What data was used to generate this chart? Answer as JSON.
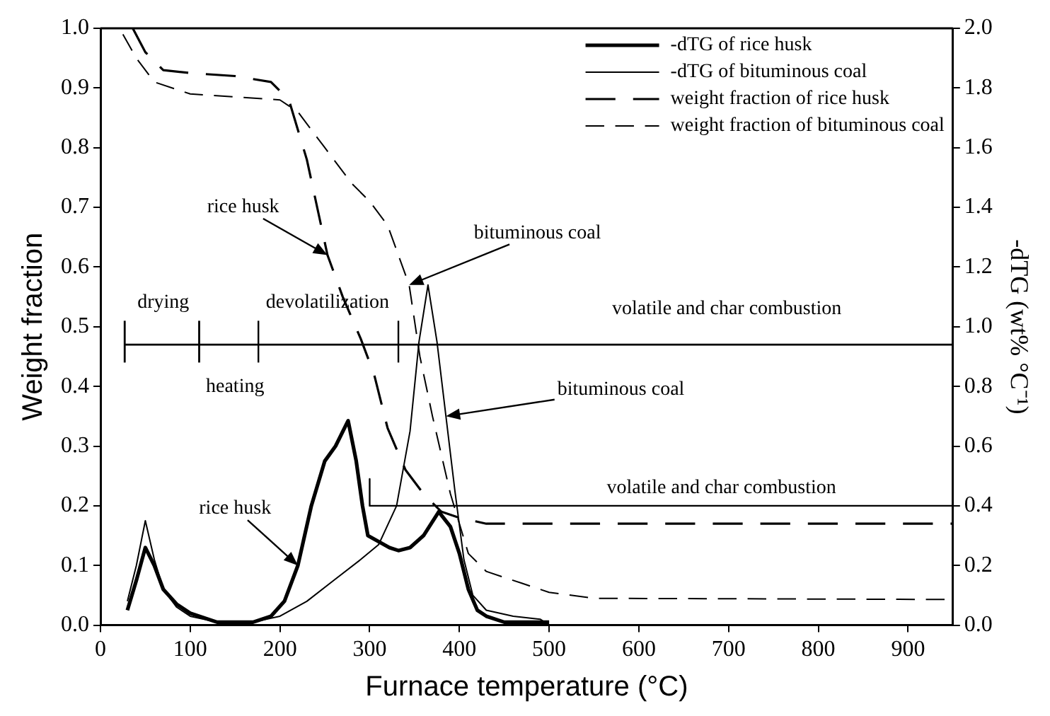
{
  "chart_data": {
    "type": "line",
    "xlabel": "Furnace temperature (°C)",
    "ylabel": "Weight fraction",
    "y2label": "-dTG (wt% °C⁻¹)",
    "xlim": [
      0,
      950
    ],
    "xticks": [
      0,
      100,
      200,
      300,
      400,
      500,
      600,
      700,
      800,
      900
    ],
    "ylim": [
      0,
      1
    ],
    "yticks": [
      {
        "value": 0,
        "label": "0.0"
      },
      {
        "value": 0.1,
        "label": "0.1"
      },
      {
        "value": 0.2,
        "label": "0.2"
      },
      {
        "value": 0.3,
        "label": "0.3"
      },
      {
        "value": 0.4,
        "label": "0.4"
      },
      {
        "value": 0.5,
        "label": "0.5"
      },
      {
        "value": 0.6,
        "label": "0.6"
      },
      {
        "value": 0.7,
        "label": "0.7"
      },
      {
        "value": 0.8,
        "label": "0.8"
      },
      {
        "value": 0.9,
        "label": "0.9"
      },
      {
        "value": 1,
        "label": "1.0"
      }
    ],
    "y2lim": [
      0,
      2
    ],
    "y2ticks": [
      {
        "value": 0,
        "label": "0.0"
      },
      {
        "value": 0.2,
        "label": "0.2"
      },
      {
        "value": 0.4,
        "label": "0.4"
      },
      {
        "value": 0.6,
        "label": "0.6"
      },
      {
        "value": 0.8,
        "label": "0.8"
      },
      {
        "value": 1,
        "label": "1.0"
      },
      {
        "value": 1.2,
        "label": "1.2"
      },
      {
        "value": 1.4,
        "label": "1.4"
      },
      {
        "value": 1.6,
        "label": "1.6"
      },
      {
        "value": 1.8,
        "label": "1.8"
      },
      {
        "value": 2,
        "label": "2.0"
      }
    ],
    "grid": false,
    "legend": "top right",
    "marker": "none",
    "series": [
      {
        "name": "-dTG of rice husk",
        "color": "#000000",
        "axis": "y2",
        "line_style": "solid",
        "x": [
          30,
          40,
          50,
          60,
          70,
          85,
          100,
          130,
          170,
          190,
          205,
          220,
          235,
          250,
          262,
          276,
          285,
          292,
          298,
          310,
          322,
          332,
          345,
          360,
          377,
          390,
          400,
          410,
          420,
          430,
          450,
          480,
          500
        ],
        "values": [
          0.05,
          0.15,
          0.26,
          0.2,
          0.12,
          0.07,
          0.04,
          0.01,
          0.01,
          0.03,
          0.08,
          0.2,
          0.4,
          0.55,
          0.6,
          0.685,
          0.55,
          0.4,
          0.3,
          0.28,
          0.26,
          0.25,
          0.26,
          0.3,
          0.38,
          0.33,
          0.24,
          0.12,
          0.05,
          0.03,
          0.01,
          0.01,
          0.01
        ]
      },
      {
        "name": "-dTG of bituminous coal",
        "color": "#000000",
        "axis": "y2",
        "line_style": "solid",
        "x": [
          30,
          40,
          50,
          60,
          70,
          85,
          100,
          130,
          170,
          200,
          230,
          260,
          290,
          310,
          330,
          345,
          355,
          365,
          375,
          385,
          395,
          405,
          415,
          430,
          460,
          490,
          500
        ],
        "values": [
          0.08,
          0.2,
          0.35,
          0.22,
          0.12,
          0.06,
          0.03,
          0.01,
          0.01,
          0.03,
          0.08,
          0.15,
          0.22,
          0.27,
          0.4,
          0.65,
          0.95,
          1.14,
          0.95,
          0.7,
          0.45,
          0.22,
          0.1,
          0.05,
          0.03,
          0.02,
          0
        ]
      },
      {
        "name": "weight fraction of rice husk",
        "color": "#000000",
        "axis": "y",
        "line_style": "dashed",
        "x": [
          36,
          50,
          70,
          100,
          150,
          190,
          210,
          230,
          253,
          270,
          290,
          305,
          320,
          340,
          360,
          380,
          400,
          430,
          950
        ],
        "values": [
          1,
          0.96,
          0.93,
          0.925,
          0.92,
          0.91,
          0.88,
          0.78,
          0.62,
          0.55,
          0.48,
          0.42,
          0.33,
          0.26,
          0.22,
          0.19,
          0.18,
          0.17,
          0.17
        ]
      },
      {
        "name": "weight fraction of bituminous coal",
        "color": "#000000",
        "axis": "y",
        "line_style": "dashed",
        "x": [
          25,
          40,
          60,
          100,
          150,
          200,
          220,
          250,
          280,
          300,
          320,
          344,
          356,
          370,
          390,
          410,
          430,
          470,
          500,
          550,
          950
        ],
        "values": [
          0.99,
          0.95,
          0.91,
          0.89,
          0.885,
          0.88,
          0.86,
          0.8,
          0.74,
          0.71,
          0.67,
          0.57,
          0.45,
          0.35,
          0.22,
          0.12,
          0.09,
          0.07,
          0.055,
          0.045,
          0.043
        ]
      },
      {
        "color": "#000000",
        "axis": "y",
        "line_style": "solid",
        "x": [
          27,
          950
        ],
        "values": [
          0.47,
          0.47
        ]
      },
      {
        "color": "#000000",
        "axis": "y",
        "line_style": "solid",
        "x": [
          27,
          27
        ],
        "values": [
          0.44,
          0.51
        ]
      },
      {
        "color": "#000000",
        "axis": "y",
        "line_style": "solid",
        "x": [
          110,
          110
        ],
        "values": [
          0.44,
          0.51
        ]
      },
      {
        "color": "#000000",
        "axis": "y",
        "line_style": "solid",
        "x": [
          176,
          176
        ],
        "values": [
          0.44,
          0.51
        ]
      },
      {
        "color": "#000000",
        "axis": "y",
        "line_style": "solid",
        "x": [
          332,
          332
        ],
        "values": [
          0.44,
          0.51
        ]
      },
      {
        "color": "#000000",
        "axis": "y2",
        "line_style": "solid",
        "x": [
          300,
          300,
          950
        ],
        "values": [
          0.49,
          0.4,
          0.4
        ]
      }
    ],
    "annotations": [
      "drying",
      "heating",
      "devolatilization",
      "volatile and char combustion",
      "volatile and char combustion",
      {
        "text": "rice husk",
        "x": 253,
        "y": 0.62
      },
      {
        "text": "bituminous coal",
        "x": 344,
        "y": 0.57
      },
      {
        "text": "bituminous coal",
        "x": 385,
        "y": 0.35
      },
      {
        "text": "rice husk",
        "x": 220,
        "y": 0.1
      }
    ]
  }
}
